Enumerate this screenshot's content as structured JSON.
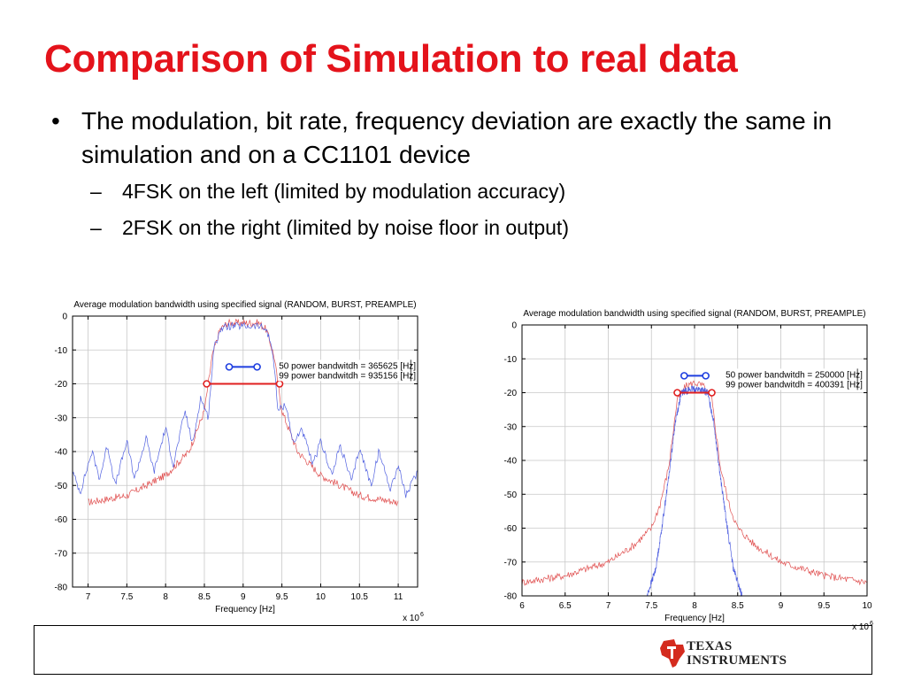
{
  "slide": {
    "title": "Comparison of Simulation to real data",
    "bullet": "The modulation, bit rate, frequency deviation are exactly the same in simulation and on a CC1101 device",
    "sub_bullets": [
      "4FSK on the left (limited by modulation accuracy)",
      "2FSK on the right (limited by noise floor in output)"
    ],
    "bullet_marker": "•",
    "sub_bullet_marker": "–"
  },
  "logo": {
    "line1": "Texas",
    "line2": "Instruments"
  },
  "chart_data": [
    {
      "type": "line",
      "title": "Average modulation bandwidth using specified signal (RANDOM, BURST, PREAMPLE)",
      "xlabel": "Frequency [Hz]",
      "ylabel": "",
      "x_multiplier": "x 10",
      "x_exponent": "6",
      "xlim": [
        6.8,
        11.25
      ],
      "ylim": [
        -80,
        0
      ],
      "xticks": [
        7,
        7.5,
        8,
        8.5,
        9,
        9.5,
        10,
        10.5,
        11
      ],
      "xtick_labels": [
        "7",
        "7.5",
        "8",
        "8.5",
        "9",
        "9.5",
        "10",
        "10.5",
        "11"
      ],
      "yticks": [
        0,
        -10,
        -20,
        -30,
        -40,
        -50,
        -60,
        -70,
        -80
      ],
      "ytick_labels": [
        "0",
        "-10",
        "-20",
        "-30",
        "-40",
        "-50",
        "-60",
        "-70",
        "-80"
      ],
      "grid": true,
      "annotations": [
        "50 power bandwitdh = 365625 [Hz]",
        "99 power bandwitdh = 935156 [Hz]"
      ],
      "markers": [
        {
          "name": "50 power bandwidth",
          "x": [
            8.82,
            9.18
          ],
          "y": -15,
          "color": "#1f3fe0"
        },
        {
          "name": "99 power bandwidth",
          "x": [
            8.53,
            9.47
          ],
          "y": -20,
          "color": "#e01f1f"
        }
      ],
      "series": [
        {
          "color": "#e05050",
          "x": [
            7.0,
            7.5,
            8.0,
            8.3,
            8.5,
            8.6,
            8.7,
            8.8,
            9.0,
            9.2,
            9.3,
            9.4,
            9.5,
            9.7,
            10.0,
            10.5,
            11.0
          ],
          "y": [
            -55,
            -53,
            -47,
            -40,
            -28,
            -12,
            -4,
            -2,
            -2,
            -2,
            -4,
            -12,
            -28,
            -40,
            -47,
            -53,
            -55
          ]
        },
        {
          "color": "#5060e0",
          "x": [
            6.8,
            6.9,
            7.05,
            7.15,
            7.25,
            7.35,
            7.5,
            7.6,
            7.75,
            7.85,
            8.0,
            8.1,
            8.25,
            8.35,
            8.45,
            8.55,
            8.62,
            8.7,
            8.8,
            9.0,
            9.2,
            9.3,
            9.38,
            9.45,
            9.55,
            9.65,
            9.75,
            9.9,
            10.0,
            10.15,
            10.25,
            10.4,
            10.5,
            10.65,
            10.75,
            10.9,
            11.0,
            11.1,
            11.25
          ],
          "y": [
            -46,
            -52,
            -40,
            -48,
            -38,
            -50,
            -37,
            -48,
            -36,
            -46,
            -33,
            -44,
            -28,
            -38,
            -24,
            -30,
            -10,
            -4,
            -3,
            -3,
            -3,
            -4,
            -10,
            -28,
            -26,
            -38,
            -33,
            -44,
            -37,
            -47,
            -38,
            -49,
            -39,
            -50,
            -40,
            -51,
            -44,
            -53,
            -46
          ]
        }
      ]
    },
    {
      "type": "line",
      "title": "Average modulation bandwidth using specified signal (RANDOM, BURST, PREAMPLE)",
      "xlabel": "Frequency [Hz]",
      "ylabel": "",
      "x_multiplier": "x 10",
      "x_exponent": "6",
      "xlim": [
        6,
        10
      ],
      "ylim": [
        -80,
        0
      ],
      "xticks": [
        6,
        6.5,
        7,
        7.5,
        8,
        8.5,
        9,
        9.5,
        10
      ],
      "xtick_labels": [
        "6",
        "6.5",
        "7",
        "7.5",
        "8",
        "8.5",
        "9",
        "9.5",
        "10"
      ],
      "yticks": [
        0,
        -10,
        -20,
        -30,
        -40,
        -50,
        -60,
        -70,
        -80
      ],
      "ytick_labels": [
        "0",
        "-10",
        "-20",
        "-30",
        "-40",
        "-50",
        "-60",
        "-70",
        "-80"
      ],
      "grid": true,
      "annotations": [
        "50 power bandwitdh = 250000 [Hz]",
        "99 power bandwitdh = 400391 [Hz]"
      ],
      "markers": [
        {
          "name": "50 power bandwidth",
          "x": [
            7.88,
            8.13
          ],
          "y": -15,
          "color": "#1f3fe0"
        },
        {
          "name": "99 power bandwidth",
          "x": [
            7.8,
            8.2
          ],
          "y": -20,
          "color": "#e01f1f"
        }
      ],
      "series": [
        {
          "color": "#e05050",
          "x": [
            6.0,
            6.5,
            7.0,
            7.3,
            7.5,
            7.6,
            7.7,
            7.8,
            7.9,
            8.0,
            8.1,
            8.2,
            8.3,
            8.4,
            8.5,
            8.7,
            9.0,
            9.5,
            10.0
          ],
          "y": [
            -76,
            -74,
            -70,
            -65,
            -60,
            -53,
            -42,
            -22,
            -18,
            -17,
            -18,
            -22,
            -42,
            -53,
            -60,
            -65,
            -70,
            -74,
            -76
          ]
        },
        {
          "color": "#5060e0",
          "x": [
            7.45,
            7.55,
            7.62,
            7.7,
            7.78,
            7.85,
            7.95,
            8.05,
            8.15,
            8.22,
            8.3,
            8.38,
            8.45,
            8.55
          ],
          "y": [
            -80,
            -72,
            -60,
            -45,
            -28,
            -20,
            -19,
            -19,
            -20,
            -28,
            -45,
            -60,
            -72,
            -80
          ]
        }
      ]
    }
  ]
}
